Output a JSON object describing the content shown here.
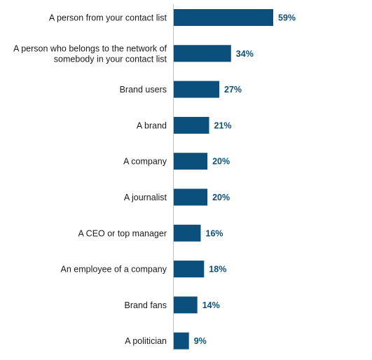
{
  "chart_data": {
    "type": "bar",
    "orientation": "horizontal",
    "categories": [
      "A person from your contact list",
      "A person who belongs to the network of somebody in your contact list",
      "Brand users",
      "A brand",
      "A company",
      "A journalist",
      "A CEO or top manager",
      "An employee of a company",
      "Brand fans",
      "A politician"
    ],
    "category_lines": [
      [
        "A person from your contact list"
      ],
      [
        "A person who belongs to the network of",
        "somebody in your contact list"
      ],
      [
        "Brand users"
      ],
      [
        "A brand"
      ],
      [
        "A company"
      ],
      [
        "A journalist"
      ],
      [
        "A CEO or top manager"
      ],
      [
        "An employee of a company"
      ],
      [
        "Brand fans"
      ],
      [
        "A politician"
      ]
    ],
    "values": [
      59,
      34,
      27,
      21,
      20,
      20,
      16,
      18,
      14,
      9
    ],
    "value_labels": [
      "59%",
      "34%",
      "27%",
      "21%",
      "20%",
      "20%",
      "16%",
      "18%",
      "14%",
      "9%"
    ],
    "unit": "%",
    "xlim": [
      0,
      60
    ],
    "grid": false,
    "legend": "none",
    "colors": {
      "bar": "#0b4f7c",
      "value_text": "#0b4f7c",
      "category_text": "#1a1a1a",
      "axis": "#bfbfbf"
    }
  }
}
